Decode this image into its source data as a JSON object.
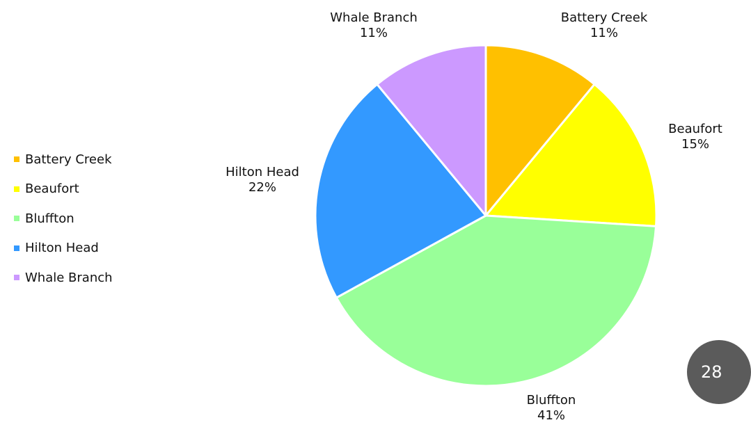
{
  "page": {
    "number": "28"
  },
  "colors": {
    "slice_border": "#ffffff"
  },
  "chart_data": {
    "type": "pie",
    "categories": [
      "Battery Creek",
      "Beaufort",
      "Bluffton",
      "Hilton Head",
      "Whale Branch"
    ],
    "values": [
      11,
      15,
      41,
      22,
      11
    ],
    "labels": [
      "11%",
      "15%",
      "41%",
      "22%",
      "11%"
    ],
    "colors": [
      "#ffc000",
      "#ffff00",
      "#99ff99",
      "#3399ff",
      "#cc99ff"
    ],
    "legend": [
      "Battery Creek",
      "Beaufort",
      "Bluffton",
      "Hilton Head",
      "Whale Branch"
    ],
    "legend_position": "left"
  }
}
